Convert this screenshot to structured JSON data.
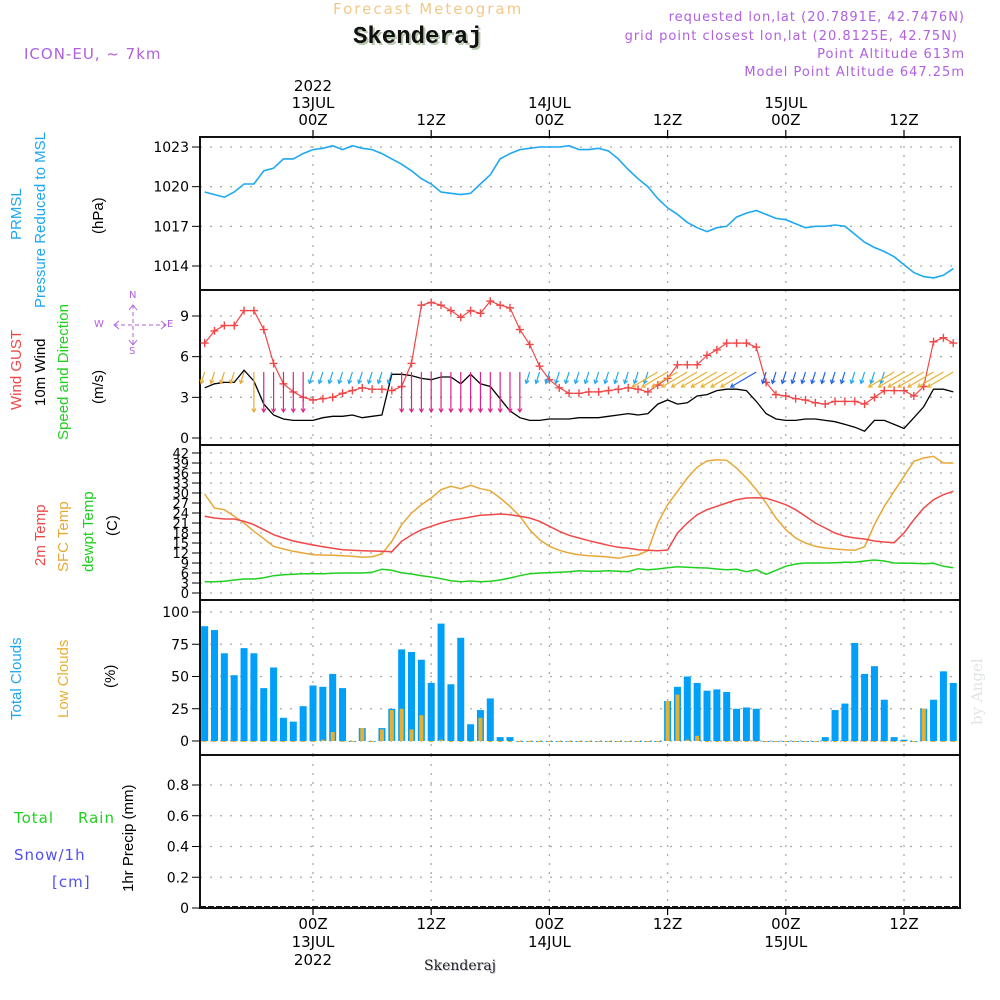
{
  "header": {
    "subtitle": "Forecast Meteogram",
    "title": "Skenderaj",
    "model": "ICON-EU, ~ 7km",
    "requested": "requested lon,lat (20.7891E, 42.7476N)",
    "grid_point": "grid point closest lon,lat (20.8125E, 42.75N)",
    "point_altitude": "Point Altitude 613m",
    "model_altitude": "Model Point Altitude 647.25m"
  },
  "footer": {
    "location": "Skenderaj",
    "watermark": "by Angel"
  },
  "colors": {
    "pressure": "#1ea8f0",
    "gust": "#f04848",
    "wind10m": "#000000",
    "t2m": "#f04848",
    "tsfc": "#e8a838",
    "dewpt": "#20d020",
    "total_clouds": "#00a0f8",
    "low_clouds": "#e8b030",
    "rain": "#20d020",
    "snow": "#5050f0",
    "legend_purple": "#b060e0"
  },
  "time_axis": {
    "top": [
      {
        "hour": 0,
        "lines": [
          "2022",
          "13JUL",
          "00Z"
        ]
      },
      {
        "hour": 12,
        "lines": [
          "12Z"
        ]
      },
      {
        "hour": 24,
        "lines": [
          "14JUL",
          "00Z"
        ]
      },
      {
        "hour": 36,
        "lines": [
          "12Z"
        ]
      },
      {
        "hour": 48,
        "lines": [
          "15JUL",
          "00Z"
        ]
      },
      {
        "hour": 60,
        "lines": [
          "12Z"
        ]
      }
    ],
    "bottom": [
      {
        "hour": 0,
        "lines": [
          "00Z",
          "13JUL",
          "2022"
        ]
      },
      {
        "hour": 12,
        "lines": [
          "12Z"
        ]
      },
      {
        "hour": 24,
        "lines": [
          "00Z",
          "14JUL"
        ]
      },
      {
        "hour": 36,
        "lines": [
          "12Z"
        ]
      },
      {
        "hour": 48,
        "lines": [
          "00Z",
          "15JUL"
        ]
      },
      {
        "hour": 60,
        "lines": [
          "12Z"
        ]
      }
    ]
  },
  "panel_labels": {
    "pressure": {
      "line1": "PRMSL",
      "line2": "Pressure Reduced to MSL",
      "unit": "(hPa)"
    },
    "wind": {
      "gust": "Wind GUST",
      "wind10m": "10m Wind",
      "speed_dir": "Speed and Direction",
      "unit": "(m/s)",
      "compass": {
        "n": "N",
        "s": "S",
        "w": "W",
        "e": "E"
      }
    },
    "temp": {
      "t2m": "2m Temp",
      "tsfc": "SFC Temp",
      "dewpt": "dewpt Temp",
      "unit": "(C)"
    },
    "clouds": {
      "total": "Total Clouds",
      "low": "Low Clouds",
      "unit": "(%)"
    },
    "precip": {
      "total": "Total",
      "rain": "Rain",
      "snow": "Snow/1h",
      "snow_unit": "[cm]",
      "axis": "1hr Precip (mm)"
    }
  },
  "chart_data": [
    {
      "type": "line",
      "title": "PRMSL Pressure Reduced to MSL",
      "ylabel": "(hPa)",
      "ylim": [
        1011,
        1024
      ],
      "yticks": [
        1014,
        1017,
        1020,
        1023
      ],
      "x_hours_start": -11,
      "grid": true,
      "series": [
        {
          "name": "PRMSL",
          "values": [
            1019.6,
            1019.4,
            1019.2,
            1019.6,
            1020.2,
            1020.2,
            1021.2,
            1021.4,
            1022.1,
            1022.1,
            1022.5,
            1022.8,
            1022.9,
            1023.1,
            1022.8,
            1023.1,
            1022.9,
            1022.8,
            1022.5,
            1022.1,
            1021.7,
            1021.2,
            1020.6,
            1020.2,
            1019.6,
            1019.5,
            1019.4,
            1019.5,
            1020.2,
            1020.9,
            1022.1,
            1022.5,
            1022.8,
            1022.9,
            1023.0,
            1023.0,
            1023.0,
            1023.1,
            1022.8,
            1022.8,
            1022.9,
            1022.7,
            1022.1,
            1021.3,
            1020.6,
            1020.0,
            1019.1,
            1018.4,
            1017.9,
            1017.3,
            1016.9,
            1016.6,
            1016.9,
            1017.0,
            1017.7,
            1018.0,
            1018.2,
            1017.9,
            1017.6,
            1017.5,
            1017.2,
            1016.9,
            1017.0,
            1017.0,
            1017.1,
            1017.0,
            1016.4,
            1015.8,
            1015.4,
            1015.1,
            1014.7,
            1014.1,
            1013.5,
            1013.2,
            1013.1,
            1013.3,
            1013.8
          ]
        }
      ]
    },
    {
      "type": "line",
      "title": "Wind GUST / 10m Wind Speed and Direction",
      "ylabel": "(m/s)",
      "ylim": [
        0,
        10.8
      ],
      "yticks": [
        0,
        3,
        6,
        9
      ],
      "x_hours_start": -11,
      "grid": true,
      "series": [
        {
          "name": "Wind GUST",
          "values": [
            7.0,
            7.9,
            8.3,
            8.3,
            9.4,
            9.4,
            8.0,
            5.5,
            4.0,
            3.4,
            3.0,
            2.8,
            2.9,
            3.0,
            3.3,
            3.5,
            3.7,
            3.6,
            3.6,
            3.5,
            3.8,
            5.5,
            9.8,
            10.0,
            9.8,
            9.4,
            8.9,
            9.4,
            9.2,
            10.1,
            9.8,
            9.6,
            8.0,
            6.9,
            5.3,
            4.3,
            3.7,
            3.3,
            3.3,
            3.4,
            3.4,
            3.5,
            3.6,
            3.7,
            3.6,
            3.4,
            3.9,
            4.4,
            5.4,
            5.4,
            5.4,
            6.1,
            6.5,
            7.0,
            7.0,
            7.0,
            6.7,
            4.1,
            3.2,
            3.1,
            2.9,
            2.8,
            2.6,
            2.5,
            2.7,
            2.7,
            2.7,
            2.5,
            3.0,
            3.5,
            3.5,
            3.5,
            3.1,
            3.8,
            7.1,
            7.4,
            7.0
          ]
        },
        {
          "name": "10m Wind",
          "values": [
            3.7,
            4.0,
            4.1,
            4.1,
            5.0,
            4.2,
            2.5,
            1.7,
            1.4,
            1.3,
            1.3,
            1.3,
            1.5,
            1.6,
            1.6,
            1.7,
            1.5,
            1.6,
            1.7,
            4.7,
            4.7,
            4.6,
            4.4,
            4.3,
            4.5,
            4.5,
            4.0,
            4.7,
            4.0,
            3.8,
            2.9,
            2.0,
            1.5,
            1.3,
            1.3,
            1.4,
            1.4,
            1.4,
            1.5,
            1.5,
            1.5,
            1.6,
            1.7,
            1.8,
            1.7,
            1.8,
            2.5,
            2.8,
            2.5,
            2.6,
            3.1,
            3.2,
            3.5,
            3.6,
            3.6,
            3.5,
            2.7,
            1.8,
            1.4,
            1.3,
            1.3,
            1.4,
            1.4,
            1.3,
            1.2,
            1.0,
            0.8,
            0.5,
            1.3,
            1.3,
            1.0,
            0.7,
            1.5,
            2.3,
            3.6,
            3.6,
            3.4
          ]
        }
      ],
      "wind_barbs": {
        "note": "direction arrows colored by direction: orange/magenta (northerly, pointing south), light-blue/cyan (NE), green/yellow (NE-E), purple (SE)",
        "count": 77
      }
    },
    {
      "type": "line",
      "title": "2m Temp / SFC Temp / dewpt Temp",
      "ylabel": "(C)",
      "ylim": [
        0,
        42
      ],
      "yticks": [
        0,
        3,
        6,
        9,
        12,
        15,
        18,
        21,
        24,
        27,
        30,
        33,
        36,
        39,
        42
      ],
      "x_hours_start": -11,
      "grid": true,
      "series": [
        {
          "name": "2m Temp",
          "values": [
            23.0,
            22.5,
            22.2,
            22.2,
            21.5,
            20.5,
            19.0,
            17.5,
            16.5,
            15.6,
            15.0,
            14.4,
            13.9,
            13.4,
            13.0,
            12.8,
            12.7,
            12.6,
            12.5,
            12.4,
            15.5,
            17.4,
            19.0,
            20.0,
            21.0,
            21.8,
            22.3,
            22.8,
            23.3,
            23.5,
            23.7,
            23.5,
            23.0,
            22.5,
            21.5,
            20.0,
            18.5,
            17.3,
            16.5,
            15.7,
            15.0,
            14.3,
            13.7,
            13.4,
            13.0,
            12.8,
            12.7,
            12.9,
            18.0,
            21.0,
            23.5,
            25.0,
            26.0,
            27.0,
            28.0,
            28.5,
            28.6,
            28.4,
            27.5,
            26.5,
            25.0,
            23.0,
            21.0,
            19.5,
            18.0,
            17.0,
            16.5,
            16.2,
            15.6,
            15.3,
            15.1,
            18.0,
            22.0,
            25.5,
            28.0,
            29.5,
            30.5,
            31.0,
            31.2,
            30.8,
            29.8
          ]
        },
        {
          "name": "SFC Temp",
          "values": [
            29.7,
            25.5,
            25.0,
            23.0,
            21.0,
            18.5,
            16.3,
            14.0,
            13.2,
            12.5,
            12.0,
            11.5,
            11.4,
            11.3,
            11.2,
            11.0,
            10.7,
            10.9,
            11.7,
            15.5,
            20.5,
            24.0,
            26.5,
            28.5,
            31.0,
            32.0,
            31.3,
            32.3,
            31.3,
            30.7,
            28.5,
            26.0,
            23.0,
            19.0,
            16.0,
            14.0,
            12.8,
            12.0,
            11.5,
            11.2,
            11.0,
            10.8,
            10.4,
            11.0,
            11.4,
            12.7,
            21.0,
            26.5,
            30.5,
            34.5,
            37.7,
            39.6,
            40.0,
            39.8,
            37.5,
            34.5,
            31.0,
            27.0,
            22.5,
            19.0,
            16.5,
            15.0,
            14.0,
            13.5,
            13.2,
            13.0,
            12.8,
            13.9,
            20.5,
            26.0,
            30.5,
            35.0,
            39.5,
            40.5,
            41.0,
            39.0,
            39.0,
            38.5,
            35.5,
            32.5,
            30.4
          ]
        },
        {
          "name": "dewpt Temp",
          "values": [
            3.4,
            3.4,
            3.5,
            3.9,
            4.2,
            4.2,
            4.6,
            5.2,
            5.5,
            5.6,
            5.8,
            5.8,
            5.8,
            5.9,
            6.0,
            6.0,
            6.0,
            6.2,
            7.1,
            6.8,
            6.1,
            5.7,
            5.2,
            4.8,
            4.3,
            3.7,
            3.4,
            3.6,
            3.4,
            3.5,
            3.9,
            4.5,
            5.2,
            5.8,
            6.0,
            6.1,
            6.2,
            6.4,
            6.7,
            6.5,
            6.5,
            6.7,
            6.5,
            6.4,
            7.3,
            7.0,
            7.2,
            7.6,
            7.9,
            7.7,
            7.6,
            7.5,
            7.2,
            7.0,
            7.1,
            6.4,
            7.0,
            5.6,
            6.8,
            8.0,
            8.7,
            9.0,
            9.0,
            9.0,
            9.1,
            9.2,
            9.2,
            9.6,
            9.9,
            9.6,
            9.0,
            8.9,
            8.9,
            8.8,
            8.9,
            8.0,
            7.6,
            7.5,
            7.7,
            6.9,
            3.8
          ]
        }
      ]
    },
    {
      "type": "bar",
      "title": "Total Clouds / Low Clouds",
      "ylabel": "(%)",
      "ylim": [
        0,
        100
      ],
      "yticks": [
        0,
        25,
        50,
        75,
        100
      ],
      "x_hours_start": -11,
      "grid": true,
      "series": [
        {
          "name": "Total Clouds",
          "values": [
            89,
            86,
            68,
            51,
            72,
            68,
            41,
            57,
            18,
            15,
            27,
            43,
            42,
            52,
            41,
            0,
            10,
            0,
            10,
            25,
            71,
            69,
            63,
            45,
            91,
            44,
            80,
            13,
            24,
            33,
            3,
            3,
            0,
            0,
            0,
            0,
            0,
            0,
            0,
            0,
            0,
            0,
            0,
            0,
            0,
            0,
            0,
            31,
            42,
            50,
            45,
            39,
            40,
            38,
            25,
            26,
            25,
            0,
            0,
            0,
            0,
            0,
            0,
            3,
            24,
            29,
            76,
            52,
            58,
            32,
            3,
            1,
            0,
            25,
            32,
            54,
            45,
            62,
            65,
            62,
            70
          ]
        },
        {
          "name": "Low Clouds",
          "values": [
            0,
            0,
            0,
            0,
            0,
            0,
            0,
            0,
            0,
            0,
            0,
            0,
            1,
            7,
            0,
            0,
            10,
            0,
            9,
            24,
            25,
            9,
            20,
            0,
            1,
            0,
            0,
            0,
            18,
            0,
            0,
            0,
            0,
            0,
            0,
            0,
            0,
            0,
            0,
            0,
            0,
            0,
            0,
            0,
            0,
            0,
            0,
            31,
            36,
            1,
            4,
            0,
            0,
            0,
            0,
            0,
            0,
            0,
            0,
            0,
            0,
            0,
            0,
            0,
            0,
            0,
            0,
            0,
            0,
            0,
            0,
            0,
            0,
            25,
            0,
            0,
            0,
            0,
            0,
            0,
            0
          ]
        }
      ]
    },
    {
      "type": "bar",
      "title": "Total Rain / Snow 1hr Precip",
      "ylabel": "1hr Precip (mm)",
      "ylim": [
        0,
        0.95
      ],
      "yticks": [
        0,
        0.2,
        0.4,
        0.6,
        0.8
      ],
      "yticklabels": [
        "0",
        "0.2",
        "0.4",
        "0.6",
        "0.8"
      ],
      "grid": true,
      "series": [
        {
          "name": "Total Rain",
          "values": []
        },
        {
          "name": "Snow/1h",
          "values": []
        }
      ]
    }
  ]
}
